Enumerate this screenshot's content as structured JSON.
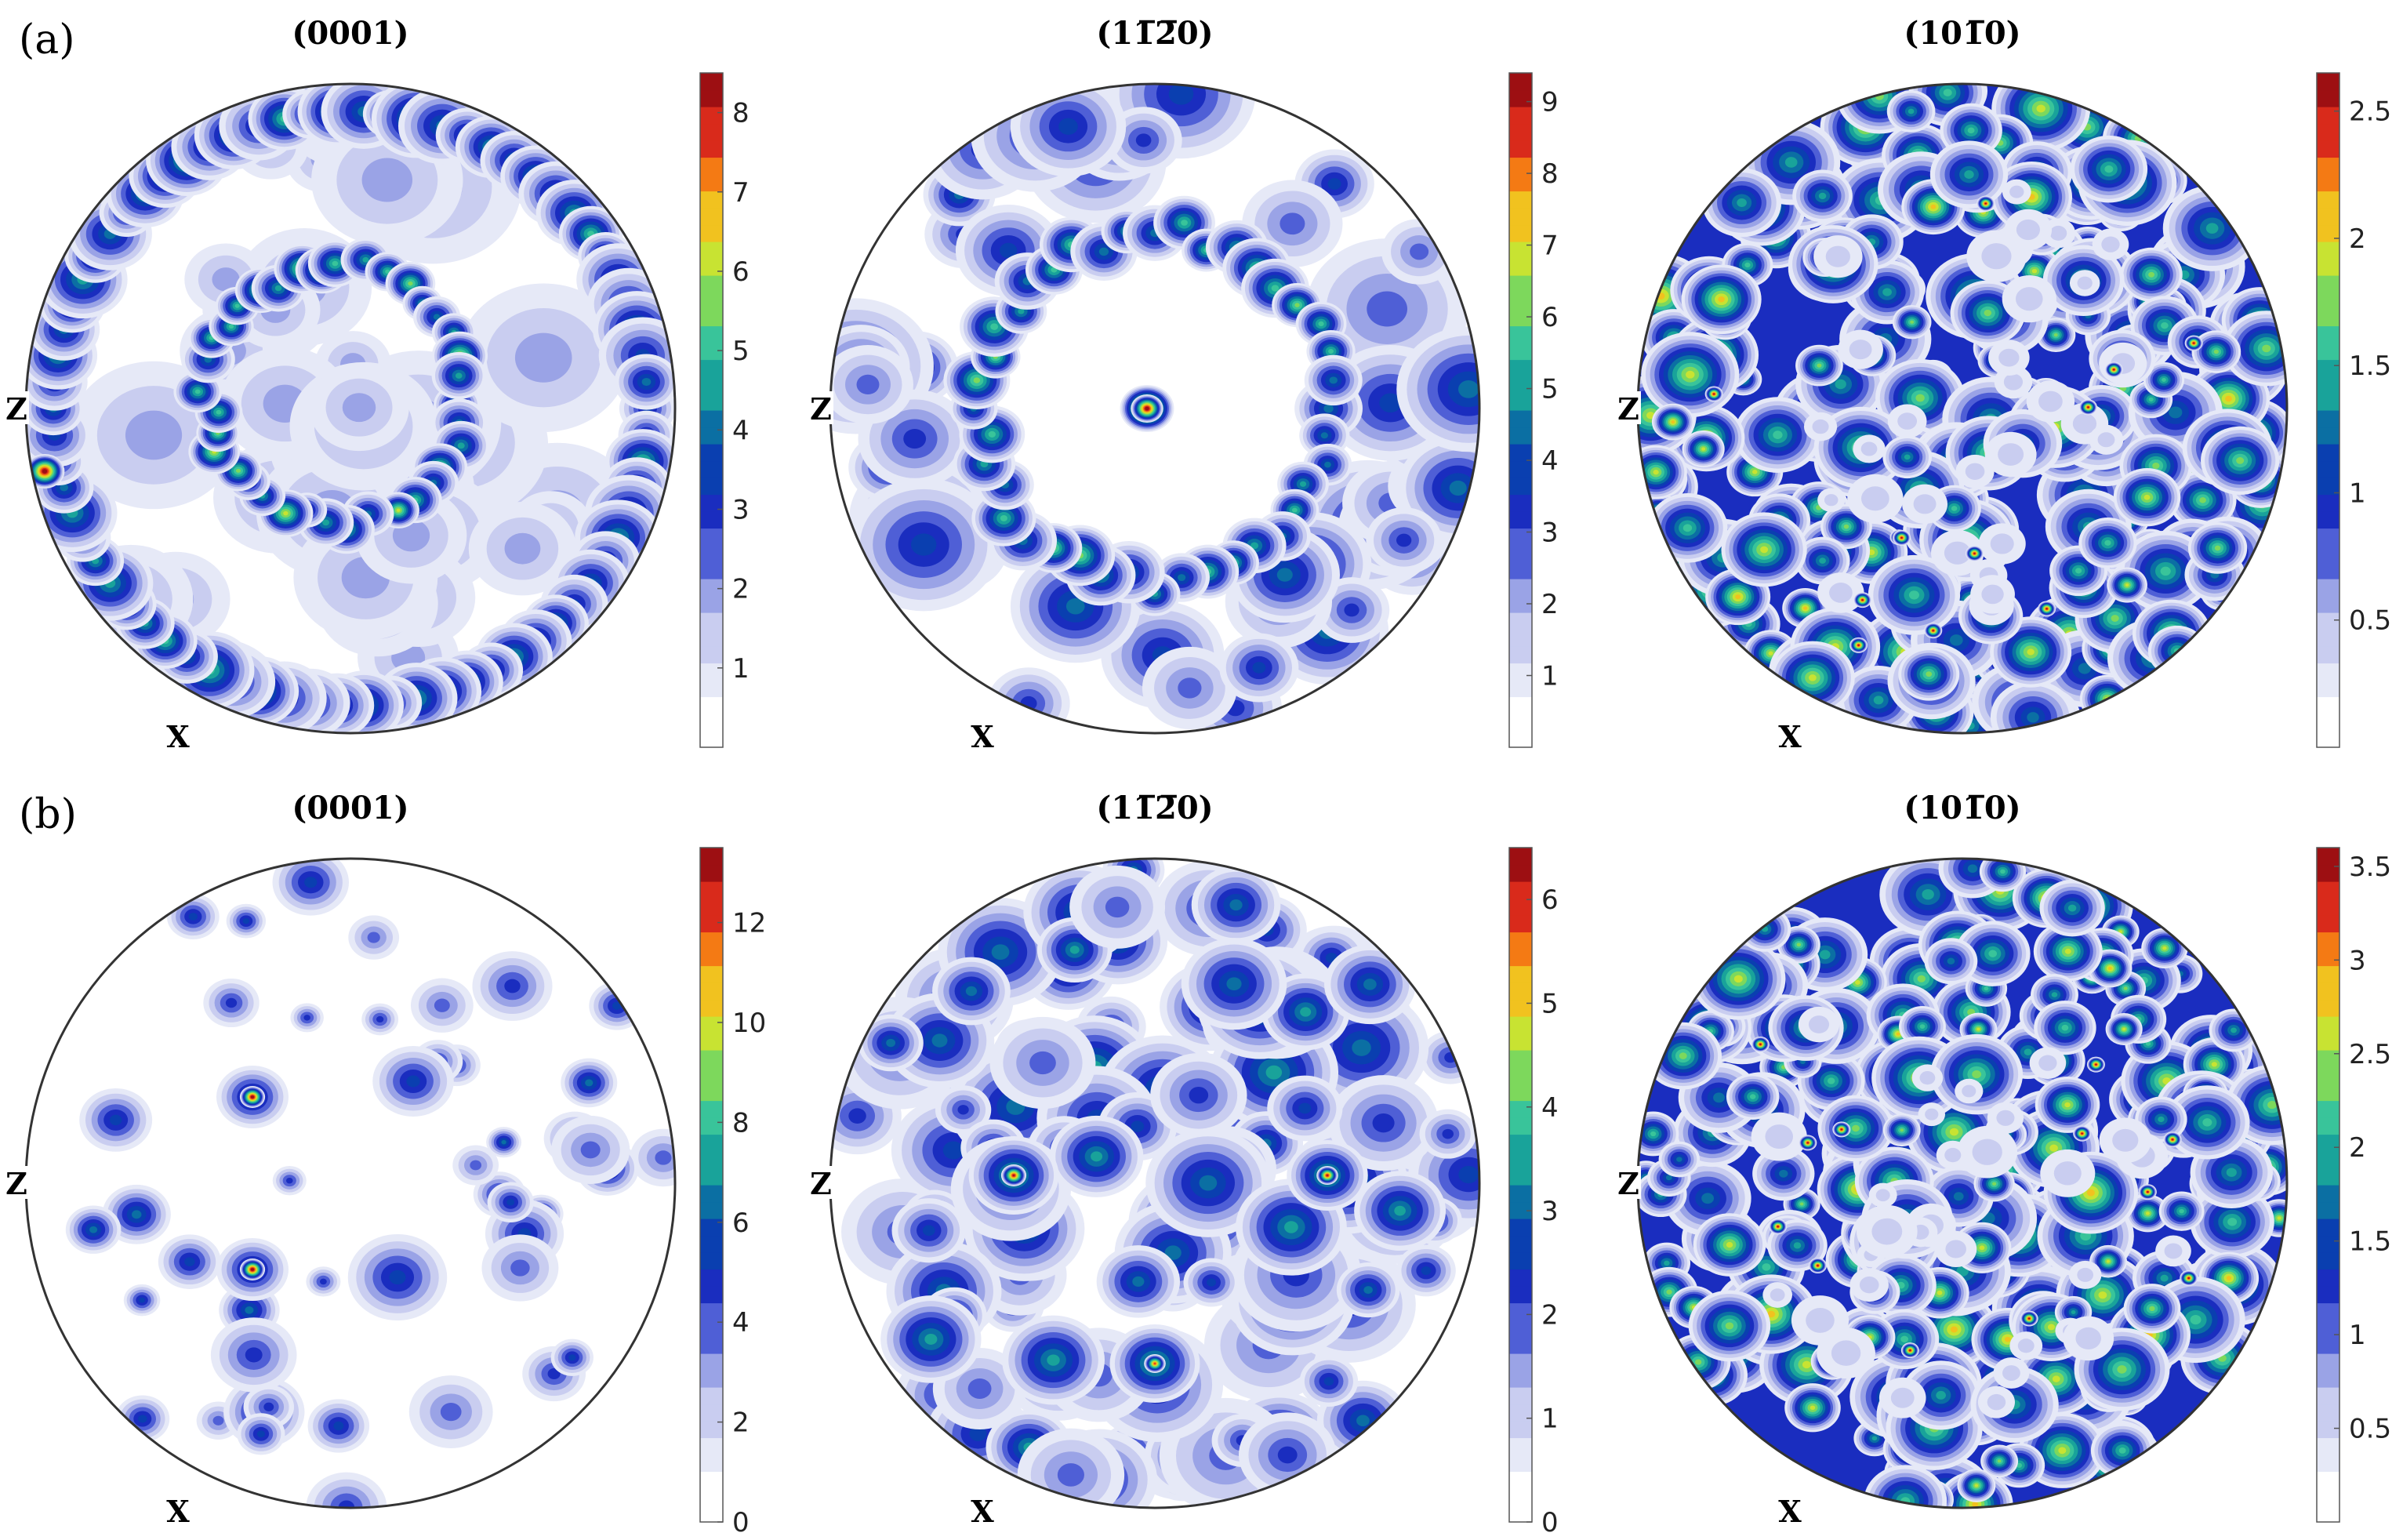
{
  "rows": [
    {
      "label": "(a)",
      "figures": [
        {
          "title": "(0001)",
          "axis_left": "Z",
          "axis_bottom": "X",
          "colorbar": {
            "max": 8.5,
            "ticks": [
              "1",
              "2",
              "3",
              "4",
              "5",
              "6",
              "7",
              "8"
            ],
            "tick_values": [
              1,
              2,
              3,
              4,
              5,
              6,
              7,
              8
            ]
          },
          "pattern": "ring-with-rim",
          "seed": 11
        },
        {
          "title": "(11̅2̅0)",
          "axis_left": "Z",
          "axis_bottom": "X",
          "colorbar": {
            "max": 9.4,
            "ticks": [
              "1",
              "2",
              "3",
              "4",
              "5",
              "6",
              "7",
              "8",
              "9"
            ],
            "tick_values": [
              1,
              2,
              3,
              4,
              5,
              6,
              7,
              8,
              9
            ]
          },
          "pattern": "ring-with-center",
          "seed": 23
        },
        {
          "title": "(101̅0)",
          "axis_left": "Z",
          "axis_bottom": "X",
          "colorbar": {
            "max": 2.65,
            "ticks": [
              "0.5",
              "1",
              "1.5",
              "2",
              "2.5"
            ],
            "tick_values": [
              0.5,
              1,
              1.5,
              2,
              2.5
            ]
          },
          "pattern": "uniform-speckle",
          "seed": 37
        }
      ]
    },
    {
      "label": "(b)",
      "figures": [
        {
          "title": "(0001)",
          "axis_left": "Z",
          "axis_bottom": "X",
          "colorbar": {
            "max": 13.5,
            "ticks": [
              "0",
              "2",
              "4",
              "6",
              "8",
              "10",
              "12"
            ],
            "tick_values": [
              0,
              2,
              4,
              6,
              8,
              10,
              12
            ]
          },
          "pattern": "sparse-blobs",
          "seed": 41
        },
        {
          "title": "(11̅2̅0)",
          "axis_left": "Z",
          "axis_bottom": "X",
          "colorbar": {
            "max": 6.5,
            "ticks": [
              "0",
              "1",
              "2",
              "3",
              "4",
              "5",
              "6"
            ],
            "tick_values": [
              0,
              1,
              2,
              3,
              4,
              5,
              6
            ]
          },
          "pattern": "clustered",
          "seed": 53
        },
        {
          "title": "(101̅0)",
          "axis_left": "Z",
          "axis_bottom": "X",
          "colorbar": {
            "max": 3.6,
            "ticks": [
              "0.5",
              "1",
              "1.5",
              "2",
              "2.5",
              "3",
              "3.5"
            ],
            "tick_values": [
              0.5,
              1,
              1.5,
              2,
              2.5,
              3,
              3.5
            ]
          },
          "pattern": "dense-speckle",
          "seed": 67
        }
      ]
    }
  ],
  "colormap": [
    "#ffffff",
    "#e6e9f7",
    "#c9cdf0",
    "#9aa3e6",
    "#4f5fd6",
    "#1a2dbf",
    "#0a3fb0",
    "#0b6fa3",
    "#19a39a",
    "#39c49a",
    "#7dd85c",
    "#c8e332",
    "#f1c21f",
    "#f47a14",
    "#d92a1b",
    "#9d0f12"
  ]
}
